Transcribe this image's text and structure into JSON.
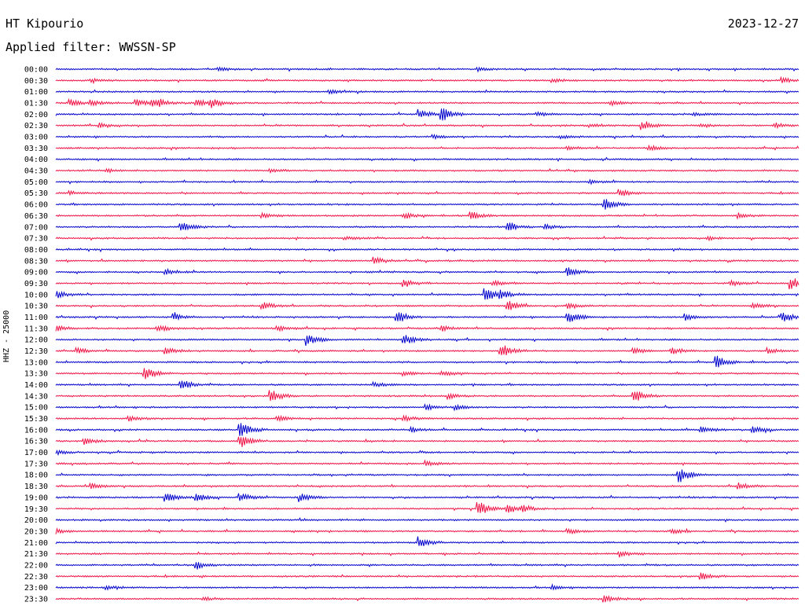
{
  "header": {
    "station": "HT Kipourio",
    "date": "2023-12-27",
    "filter_label": "Applied filter: WWSSN-SP"
  },
  "chart_data": {
    "type": "line",
    "title": "HT Kipourio",
    "ylabel": "HHZ - 25000",
    "colors": {
      "even": "#0000cc",
      "odd": "#ee1144"
    },
    "rows": [
      {
        "label": "00:00",
        "events": [
          [
            0.22,
            2
          ],
          [
            0.57,
            2
          ]
        ]
      },
      {
        "label": "00:30",
        "events": [
          [
            0.05,
            2
          ],
          [
            0.67,
            2
          ],
          [
            0.98,
            3
          ]
        ]
      },
      {
        "label": "01:00",
        "events": [
          [
            0.37,
            2
          ]
        ]
      },
      {
        "label": "01:30",
        "events": [
          [
            0.02,
            4
          ],
          [
            0.05,
            3
          ],
          [
            0.11,
            4
          ],
          [
            0.13,
            4
          ],
          [
            0.14,
            3
          ],
          [
            0.19,
            4
          ],
          [
            0.21,
            6
          ],
          [
            0.75,
            3
          ]
        ]
      },
      {
        "label": "02:00",
        "events": [
          [
            0.49,
            6
          ],
          [
            0.52,
            9
          ],
          [
            0.65,
            2
          ],
          [
            0.86,
            2
          ]
        ]
      },
      {
        "label": "02:30",
        "events": [
          [
            0.06,
            3
          ],
          [
            0.72,
            2
          ],
          [
            0.79,
            5
          ],
          [
            0.87,
            2
          ],
          [
            0.97,
            3
          ]
        ]
      },
      {
        "label": "03:00",
        "events": [
          [
            0.51,
            2
          ],
          [
            0.68,
            2
          ]
        ]
      },
      {
        "label": "03:30",
        "events": [
          [
            0.69,
            2
          ],
          [
            0.8,
            3
          ]
        ]
      },
      {
        "label": "04:00",
        "events": []
      },
      {
        "label": "04:30",
        "events": [
          [
            0.07,
            2
          ],
          [
            0.29,
            2
          ]
        ]
      },
      {
        "label": "05:00",
        "events": [
          [
            0.72,
            2
          ]
        ]
      },
      {
        "label": "05:30",
        "events": [
          [
            0.02,
            2
          ],
          [
            0.76,
            4
          ]
        ]
      },
      {
        "label": "06:00",
        "events": [
          [
            0.74,
            7
          ]
        ]
      },
      {
        "label": "06:30",
        "events": [
          [
            0.28,
            3
          ],
          [
            0.47,
            3
          ],
          [
            0.56,
            5
          ],
          [
            0.92,
            3
          ]
        ]
      },
      {
        "label": "07:00",
        "events": [
          [
            0.17,
            6
          ],
          [
            0.61,
            5
          ],
          [
            0.66,
            3
          ]
        ]
      },
      {
        "label": "07:30",
        "events": [
          [
            0.39,
            2
          ],
          [
            0.88,
            2
          ]
        ]
      },
      {
        "label": "08:00",
        "events": []
      },
      {
        "label": "08:30",
        "events": [
          [
            0.43,
            4
          ]
        ]
      },
      {
        "label": "09:00",
        "events": [
          [
            0.15,
            3
          ],
          [
            0.69,
            6
          ]
        ]
      },
      {
        "label": "09:30",
        "events": [
          [
            0.47,
            5
          ],
          [
            0.59,
            3
          ],
          [
            0.91,
            3
          ],
          [
            0.99,
            8
          ]
        ]
      },
      {
        "label": "10:00",
        "events": [
          [
            0.0,
            5
          ],
          [
            0.58,
            7
          ],
          [
            0.6,
            4
          ]
        ]
      },
      {
        "label": "10:30",
        "events": [
          [
            0.28,
            4
          ],
          [
            0.61,
            6
          ],
          [
            0.69,
            3
          ],
          [
            0.94,
            3
          ]
        ]
      },
      {
        "label": "11:00",
        "events": [
          [
            0.16,
            4
          ],
          [
            0.46,
            8
          ],
          [
            0.69,
            8
          ],
          [
            0.85,
            4
          ],
          [
            0.98,
            6
          ]
        ]
      },
      {
        "label": "11:30",
        "events": [
          [
            0.0,
            4
          ],
          [
            0.14,
            4
          ],
          [
            0.3,
            3
          ],
          [
            0.52,
            3
          ]
        ]
      },
      {
        "label": "12:00",
        "events": [
          [
            0.34,
            7
          ],
          [
            0.47,
            6
          ]
        ]
      },
      {
        "label": "12:30",
        "events": [
          [
            0.03,
            3
          ],
          [
            0.15,
            4
          ],
          [
            0.6,
            9
          ],
          [
            0.78,
            3
          ],
          [
            0.83,
            4
          ],
          [
            0.96,
            3
          ]
        ]
      },
      {
        "label": "13:00",
        "events": [
          [
            0.89,
            8
          ]
        ]
      },
      {
        "label": "13:30",
        "events": [
          [
            0.12,
            8
          ],
          [
            0.47,
            3
          ],
          [
            0.52,
            3
          ]
        ]
      },
      {
        "label": "14:00",
        "events": [
          [
            0.17,
            6
          ],
          [
            0.43,
            3
          ]
        ]
      },
      {
        "label": "14:30",
        "events": [
          [
            0.29,
            8
          ],
          [
            0.53,
            3
          ],
          [
            0.78,
            8
          ]
        ]
      },
      {
        "label": "15:00",
        "events": [
          [
            0.5,
            3
          ],
          [
            0.54,
            3
          ]
        ]
      },
      {
        "label": "15:30",
        "events": [
          [
            0.1,
            4
          ],
          [
            0.3,
            3
          ],
          [
            0.47,
            3
          ]
        ]
      },
      {
        "label": "16:00",
        "events": [
          [
            0.25,
            9
          ],
          [
            0.48,
            3
          ],
          [
            0.87,
            4
          ],
          [
            0.94,
            5
          ]
        ]
      },
      {
        "label": "16:30",
        "events": [
          [
            0.04,
            4
          ],
          [
            0.25,
            8
          ]
        ]
      },
      {
        "label": "17:00",
        "events": [
          [
            0.0,
            3
          ]
        ]
      },
      {
        "label": "17:30",
        "events": [
          [
            0.5,
            3
          ]
        ]
      },
      {
        "label": "18:00",
        "events": [
          [
            0.84,
            9
          ]
        ]
      },
      {
        "label": "18:30",
        "events": [
          [
            0.05,
            3
          ],
          [
            0.92,
            4
          ]
        ]
      },
      {
        "label": "19:00",
        "events": [
          [
            0.15,
            6
          ],
          [
            0.19,
            5
          ],
          [
            0.25,
            5
          ],
          [
            0.33,
            5
          ]
        ]
      },
      {
        "label": "19:30",
        "events": [
          [
            0.57,
            9
          ],
          [
            0.61,
            6
          ],
          [
            0.63,
            3
          ]
        ]
      },
      {
        "label": "20:00",
        "events": []
      },
      {
        "label": "20:30",
        "events": [
          [
            0.0,
            3
          ],
          [
            0.69,
            3
          ],
          [
            0.83,
            3
          ]
        ]
      },
      {
        "label": "21:00",
        "events": [
          [
            0.49,
            7
          ]
        ]
      },
      {
        "label": "21:30",
        "events": [
          [
            0.76,
            4
          ]
        ]
      },
      {
        "label": "22:00",
        "events": [
          [
            0.19,
            5
          ]
        ]
      },
      {
        "label": "22:30",
        "events": [
          [
            0.87,
            4
          ]
        ]
      },
      {
        "label": "23:00",
        "events": [
          [
            0.07,
            2
          ],
          [
            0.67,
            2
          ]
        ]
      },
      {
        "label": "23:30",
        "events": [
          [
            0.2,
            2
          ],
          [
            0.74,
            4
          ]
        ]
      }
    ]
  }
}
